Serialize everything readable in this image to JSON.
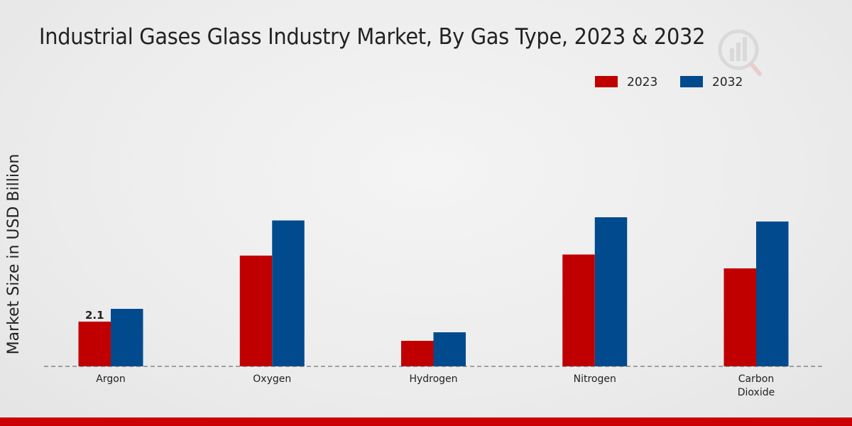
{
  "title": "Industrial Gases Glass Industry Market, By Gas Type, 2023 & 2032",
  "colors": {
    "2023": "#c00000",
    "2032": "#004a8d",
    "bottom_bar": "#cc0000"
  },
  "chart_data": {
    "type": "bar",
    "title": "Industrial Gases Glass Industry Market, By Gas Type, 2023 & 2032",
    "xlabel": "",
    "ylabel": "Market Size in USD Billion",
    "categories": [
      "Argon",
      "Oxygen",
      "Hydrogen",
      "Nitrogen",
      "Carbon Dioxide"
    ],
    "category_lines": [
      [
        "Argon"
      ],
      [
        "Oxygen"
      ],
      [
        "Hydrogen"
      ],
      [
        "Nitrogen"
      ],
      [
        "Carbon",
        "Dioxide"
      ]
    ],
    "series": [
      {
        "name": "2023",
        "values": [
          2.1,
          5.2,
          1.2,
          5.25,
          4.6
        ]
      },
      {
        "name": "2032",
        "values": [
          2.7,
          6.85,
          1.6,
          7.0,
          6.8
        ]
      }
    ],
    "data_labels": [
      {
        "series": 0,
        "index": 0,
        "text": "2.1"
      }
    ],
    "ylim": [
      0,
      12
    ],
    "grid": false,
    "legend_position": "top-right"
  }
}
